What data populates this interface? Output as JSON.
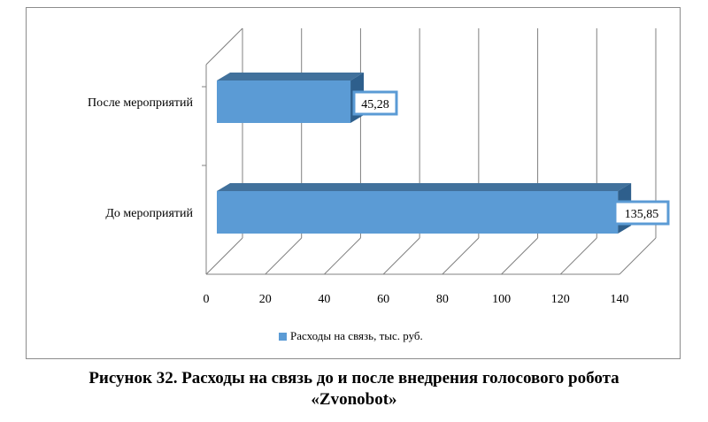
{
  "chart_data": {
    "type": "bar",
    "orientation": "horizontal",
    "style": "3d",
    "categories": [
      "После мероприятий",
      "До мероприятий"
    ],
    "values": [
      45.28,
      135.85
    ],
    "data_labels": [
      "45,28",
      "135,85"
    ],
    "x_ticks": [
      "0",
      "20",
      "40",
      "60",
      "80",
      "100",
      "120",
      "140"
    ],
    "xlim": [
      0,
      140
    ],
    "grid": true,
    "legend_position": "bottom",
    "series": [
      {
        "name": "Расходы на связь, тыс. руб.",
        "color": "#5b9bd5"
      }
    ]
  },
  "caption": {
    "line1": "Рисунок 32. Расходы на связь до и после внедрения голосового робота",
    "line2": "«Zvonobot»"
  }
}
